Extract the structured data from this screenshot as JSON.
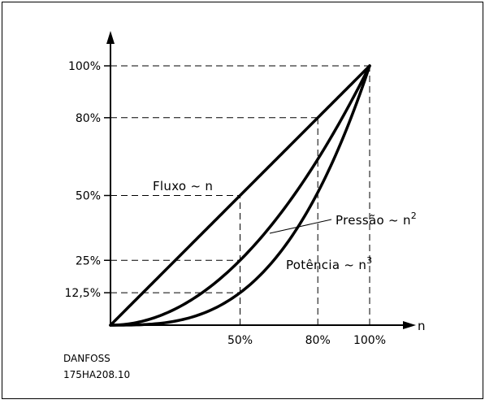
{
  "chart_data": {
    "type": "line",
    "x_axis_label": "n",
    "x_ticks": [
      {
        "value": 50,
        "label": "50%"
      },
      {
        "value": 80,
        "label": "80%"
      },
      {
        "value": 100,
        "label": "100%"
      }
    ],
    "y_ticks": [
      {
        "value": 100,
        "label": "100%"
      },
      {
        "value": 80,
        "label": "80%"
      },
      {
        "value": 50,
        "label": "50%"
      },
      {
        "value": 25,
        "label": "25%"
      },
      {
        "value": 12.5,
        "label": "12,5%"
      }
    ],
    "xlim": [
      0,
      100
    ],
    "ylim": [
      0,
      100
    ],
    "series": [
      {
        "label_main": "Fluxo ~ n",
        "label_sup": "",
        "exponent": 1
      },
      {
        "label_main": "Pressão ~ n",
        "label_sup": "2",
        "exponent": 2
      },
      {
        "label_main": "Potência ~ n",
        "label_sup": "3",
        "exponent": 3
      }
    ],
    "line_color": "#000000"
  },
  "footer": {
    "brand": "DANFOSS",
    "code": "175HA208.10"
  }
}
